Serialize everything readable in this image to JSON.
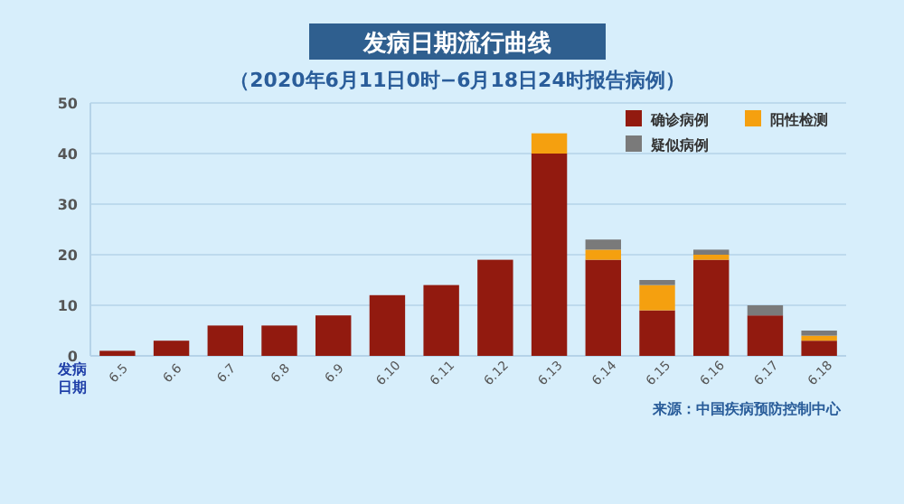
{
  "chart_data": {
    "type": "bar",
    "stacked": true,
    "title": "发病日期流行曲线",
    "subtitle": "（2020年6月11日0时−6月18日24时报告病例）",
    "xlabel": "发病日期",
    "annotations": [
      "来源：中国疾病预防控制中心"
    ],
    "categories": [
      "6.5",
      "6.6",
      "6.7",
      "6.8",
      "6.9",
      "6.10",
      "6.11",
      "6.12",
      "6.13",
      "6.14",
      "6.15",
      "6.16",
      "6.17",
      "6.18"
    ],
    "series": [
      {
        "name": "确诊病例",
        "color": "#921a0f",
        "values": [
          1,
          3,
          6,
          6,
          8,
          12,
          14,
          19,
          40,
          19,
          9,
          19,
          8,
          3
        ]
      },
      {
        "name": "阳性检测",
        "color": "#f5a00f",
        "values": [
          0,
          0,
          0,
          0,
          0,
          0,
          0,
          0,
          4,
          2,
          5,
          1,
          0,
          1
        ]
      },
      {
        "name": "疑似病例",
        "color": "#7a7a7a",
        "values": [
          0,
          0,
          0,
          0,
          0,
          0,
          0,
          0,
          0,
          2,
          1,
          1,
          2,
          1
        ]
      }
    ],
    "ylim": [
      0,
      50
    ],
    "yticks": [
      0,
      10,
      20,
      30,
      40,
      50
    ],
    "grid": "y",
    "legend": "top right"
  }
}
